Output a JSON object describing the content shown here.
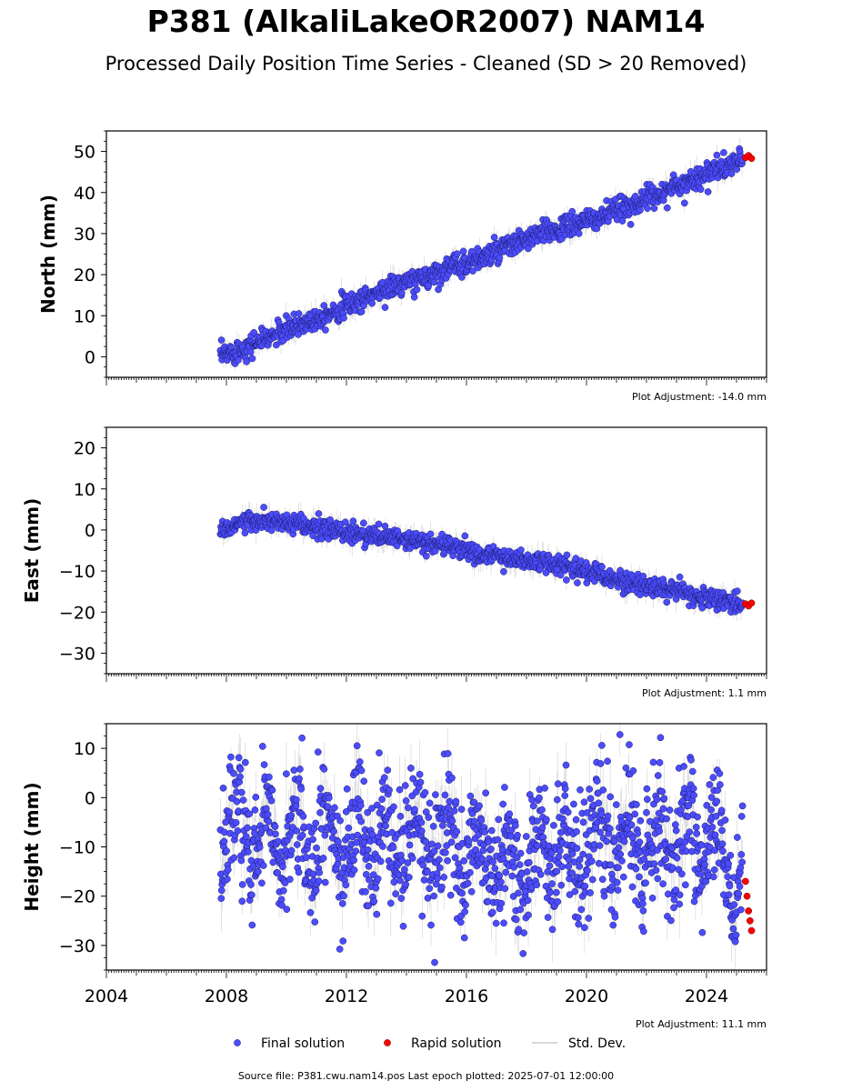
{
  "title": "P381 (AlkaliLakeOR2007) NAM14",
  "subtitle": "Processed Daily Position Time Series - Cleaned (SD > 20 Removed)",
  "footer": "Source file: P381.cwu.nam14.pos  Last epoch plotted: 2025-07-01 12:00:00",
  "legend": {
    "final": "Final solution",
    "rapid": "Rapid solution",
    "std": "Std. Dev."
  },
  "colors": {
    "final": "#4c4cff",
    "rapid": "#ff0000",
    "std": "#999999"
  },
  "chart_data": [
    {
      "type": "scatter",
      "ylabel": "North (mm)",
      "adjustment": "Plot Adjustment: -14.0 mm",
      "ylim": [
        -5,
        55
      ],
      "yticks": [
        0,
        10,
        20,
        30,
        40,
        50
      ],
      "xlim": [
        2004,
        2026
      ],
      "series": [
        {
          "name": "Final solution",
          "x": [
            2007.8,
            2008.5,
            2009.5,
            2010.5,
            2011.5,
            2012.5,
            2013.5,
            2014.5,
            2015.5,
            2016.5,
            2017.5,
            2018.5,
            2019.5,
            2020.5,
            2021.5,
            2022.5,
            2023.5,
            2024.5,
            2025.2
          ],
          "y": [
            0,
            2,
            5,
            8,
            11,
            14,
            17,
            19,
            22,
            24,
            27,
            30,
            32,
            34,
            37,
            40,
            43,
            46,
            48
          ]
        },
        {
          "name": "Rapid solution",
          "x": [
            2025.3,
            2025.4,
            2025.5
          ],
          "y": [
            48.5,
            49,
            48.3
          ]
        }
      ],
      "noise": 1.4
    },
    {
      "type": "scatter",
      "ylabel": "East (mm)",
      "adjustment": "Plot Adjustment: 1.1 mm",
      "ylim": [
        -35,
        25
      ],
      "yticks": [
        -30,
        -20,
        -10,
        0,
        10,
        20
      ],
      "xlim": [
        2004,
        2026
      ],
      "series": [
        {
          "name": "Final solution",
          "x": [
            2007.8,
            2008.5,
            2009.5,
            2010.5,
            2011.5,
            2012.5,
            2013.5,
            2014.5,
            2015.5,
            2016.5,
            2017.5,
            2018.5,
            2019.5,
            2020.5,
            2021.5,
            2022.5,
            2023.5,
            2024.5,
            2025.2
          ],
          "y": [
            0,
            2,
            2,
            1,
            0,
            -1,
            -2,
            -3,
            -4,
            -6,
            -7,
            -8,
            -9,
            -11,
            -13,
            -14,
            -16,
            -17,
            -18
          ]
        },
        {
          "name": "Rapid solution",
          "x": [
            2025.3,
            2025.4,
            2025.5
          ],
          "y": [
            -18,
            -18.5,
            -17.8
          ]
        }
      ],
      "noise": 1.2
    },
    {
      "type": "scatter",
      "ylabel": "Height (mm)",
      "adjustment": "Plot Adjustment: 11.1 mm",
      "ylim": [
        -35,
        15
      ],
      "yticks": [
        -30,
        -20,
        -10,
        0,
        10
      ],
      "xlim": [
        2004,
        2026
      ],
      "xticks": [
        2004,
        2008,
        2012,
        2016,
        2020,
        2024
      ],
      "series": [
        {
          "name": "Final solution",
          "x": [
            2007.8,
            2008.5,
            2009.5,
            2010.5,
            2011.5,
            2012.5,
            2013.5,
            2014.5,
            2015.5,
            2016.5,
            2017.5,
            2018.5,
            2019.5,
            2020.5,
            2021.5,
            2022.5,
            2023.5,
            2024.5,
            2025.2
          ],
          "y": [
            -5,
            -8,
            -6,
            -8,
            -10,
            -8,
            -9,
            -9,
            -10,
            -12,
            -14,
            -12,
            -11,
            -9,
            -9,
            -8,
            -9,
            -11,
            -20
          ]
        },
        {
          "name": "Rapid solution",
          "x": [
            2025.3,
            2025.35,
            2025.4,
            2025.45,
            2025.5
          ],
          "y": [
            -17,
            -20,
            -23,
            -25,
            -27
          ]
        }
      ],
      "noise": 6
    }
  ]
}
